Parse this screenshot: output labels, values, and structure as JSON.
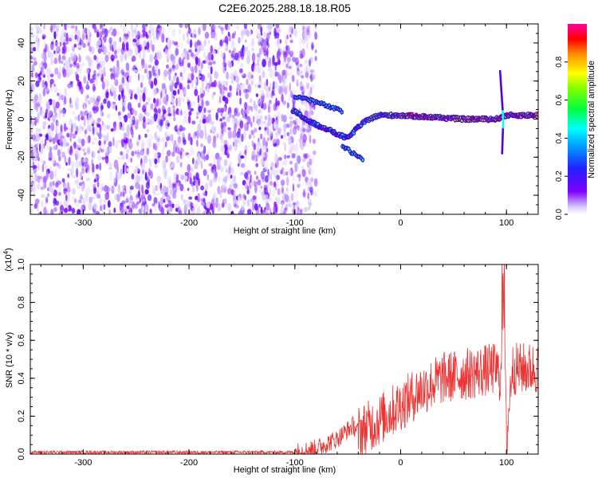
{
  "title": "C2E6.2025.288.18.18.R05",
  "chart_data": [
    {
      "type": "heatmap",
      "xlabel": "Height of straight line (km)",
      "ylabel": "Frequency (Hz)",
      "xlim": [
        -350,
        130
      ],
      "ylim": [
        -50,
        50
      ],
      "x_ticks": [
        -300,
        -200,
        -100,
        0,
        100
      ],
      "y_ticks": [
        -40,
        -20,
        0,
        20,
        40
      ],
      "colorbar": {
        "label": "Normalized spectral amplitude",
        "range": [
          0,
          1
        ],
        "ticks": [
          "0.0",
          "0.2",
          "0.4",
          "0.6",
          "0.8"
        ],
        "colormap": "rainbow (violet→blue→cyan→green→yellow→red→magenta)"
      },
      "features": {
        "noise_region_x": [
          -350,
          -95
        ],
        "signal_line": [
          {
            "x": -100,
            "y": 4
          },
          {
            "x": -90,
            "y": 0
          },
          {
            "x": -80,
            "y": -3
          },
          {
            "x": -70,
            "y": -5
          },
          {
            "x": -60,
            "y": -8
          },
          {
            "x": -50,
            "y": -10
          },
          {
            "x": -40,
            "y": -4
          },
          {
            "x": -30,
            "y": 0
          },
          {
            "x": -20,
            "y": 2
          },
          {
            "x": 0,
            "y": 2
          },
          {
            "x": 30,
            "y": 1
          },
          {
            "x": 60,
            "y": 0
          },
          {
            "x": 90,
            "y": 0
          },
          {
            "x": 100,
            "y": 2
          },
          {
            "x": 130,
            "y": 2
          }
        ],
        "upper_branch": [
          {
            "x": -100,
            "y": 12
          },
          {
            "x": -85,
            "y": 10
          },
          {
            "x": -70,
            "y": 7
          },
          {
            "x": -55,
            "y": 4
          }
        ],
        "lower_branch": [
          {
            "x": -55,
            "y": -14
          },
          {
            "x": -45,
            "y": -18
          },
          {
            "x": -35,
            "y": -21
          }
        ],
        "spike_x": 97,
        "spike_range": [
          -18,
          26
        ]
      }
    },
    {
      "type": "line",
      "xlabel": "Height of straight line (km)",
      "ylabel": "SNR (10 * v/v)",
      "multiplier_label": "(x10",
      "multiplier_exp": "4",
      "multiplier_close": ")",
      "xlim": [
        -350,
        130
      ],
      "ylim": [
        0,
        1.0
      ],
      "x_ticks": [
        -300,
        -200,
        -100,
        0,
        100
      ],
      "y_ticks": [
        "0.0",
        "0.2",
        "0.4",
        "0.6",
        "0.8",
        "1.0"
      ],
      "color": "#ee3333",
      "series": [
        {
          "values_profile": [
            {
              "x": -350,
              "y": 0.01
            },
            {
              "x": -100,
              "y": 0.01
            },
            {
              "x": -80,
              "y": 0.03
            },
            {
              "x": -60,
              "y": 0.08
            },
            {
              "x": -45,
              "y": 0.15
            },
            {
              "x": -40,
              "y": 0.12
            },
            {
              "x": -25,
              "y": 0.16
            },
            {
              "x": -10,
              "y": 0.22
            },
            {
              "x": 0,
              "y": 0.26
            },
            {
              "x": 20,
              "y": 0.34
            },
            {
              "x": 40,
              "y": 0.4
            },
            {
              "x": 60,
              "y": 0.42
            },
            {
              "x": 80,
              "y": 0.44
            },
            {
              "x": 90,
              "y": 0.45
            },
            {
              "x": 95,
              "y": 0.4
            },
            {
              "x": 97,
              "y": 1.0
            },
            {
              "x": 100,
              "y": 0.05
            },
            {
              "x": 105,
              "y": 0.45
            },
            {
              "x": 130,
              "y": 0.45
            }
          ]
        }
      ]
    }
  ]
}
